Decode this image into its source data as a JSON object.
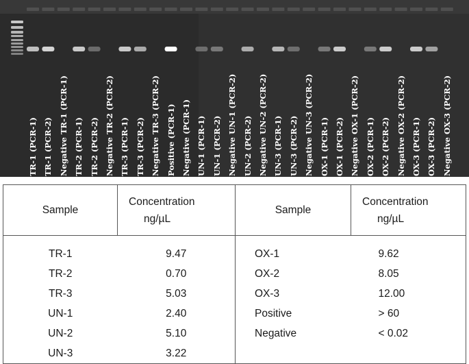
{
  "gel": {
    "lanes": [
      {
        "label": "TR-1 (PCR-1)",
        "band": 0.7
      },
      {
        "label": "TR-1 (PCR-2)",
        "band": 0.8
      },
      {
        "label": "Negative TR-1 (PCR-1)",
        "band": 0
      },
      {
        "label": "TR-2 (PCR-1)",
        "band": 0.75
      },
      {
        "label": "TR-2 (PCR-2)",
        "band": 0.3
      },
      {
        "label": "Negative TR-2 (PCR-2)",
        "band": 0
      },
      {
        "label": "TR-3 (PCR-1)",
        "band": 0.75
      },
      {
        "label": "TR-3 (PCR-2)",
        "band": 0.6
      },
      {
        "label": "Negative TR-3 (PCR-2)",
        "band": 0
      },
      {
        "label": "Positive (PCR-1)",
        "band": 1.0
      },
      {
        "label": "Negative (PCR-1)",
        "band": 0
      },
      {
        "label": "UN-1 (PCR-1)",
        "band": 0.3
      },
      {
        "label": "UN-1 (PCR-2)",
        "band": 0.35
      },
      {
        "label": "Negative UN-1 (PCR-2)",
        "band": 0
      },
      {
        "label": "UN-2 (PCR-2)",
        "band": 0.6
      },
      {
        "label": "Negative UN-2 (PCR-2)",
        "band": 0
      },
      {
        "label": "UN-3 (PCR-1)",
        "band": 0.65
      },
      {
        "label": "UN-3 (PCR-2)",
        "band": 0.3
      },
      {
        "label": "Negative UN-3 (PCR-2)",
        "band": 0
      },
      {
        "label": "OX-1 (PCR-1)",
        "band": 0.35
      },
      {
        "label": "OX-1 (PCR-2)",
        "band": 0.75
      },
      {
        "label": "Negative OX-1 (PCR-2)",
        "band": 0
      },
      {
        "label": "OX-2 (PCR-1)",
        "band": 0.35
      },
      {
        "label": "OX-2 (PCR-2)",
        "band": 0.75
      },
      {
        "label": "Negative OX-2 (PCR-2)",
        "band": 0
      },
      {
        "label": "OX-3 (PCR-1)",
        "band": 0.75
      },
      {
        "label": "OX-3 (PCR-2)",
        "band": 0.55
      },
      {
        "label": "Negative OX-3 (PCR-2)",
        "band": 0
      }
    ]
  },
  "table": {
    "headers": {
      "sample_left": "Sample",
      "conc_left_line1": "Concentration",
      "conc_left_line2": "ng/µL",
      "sample_right": "Sample",
      "conc_right_line1": "Concentration",
      "conc_right_line2": "ng/µL"
    },
    "rows": [
      {
        "s1": "TR-1",
        "v1": "9.47",
        "s2": "OX-1",
        "v2": "9.62"
      },
      {
        "s1": "TR-2",
        "v1": "0.70",
        "s2": "OX-2",
        "v2": "8.05"
      },
      {
        "s1": "TR-3",
        "v1": "5.03",
        "s2": "OX-3",
        "v2": "12.00"
      },
      {
        "s1": "UN-1",
        "v1": "2.40",
        "s2": "Positive",
        "v2": "> 60"
      },
      {
        "s1": "UN-2",
        "v1": "5.10",
        "s2": "Negative",
        "v2": "< 0.02"
      },
      {
        "s1": "UN-3",
        "v1": "3.22",
        "s2": "",
        "v2": ""
      }
    ]
  }
}
